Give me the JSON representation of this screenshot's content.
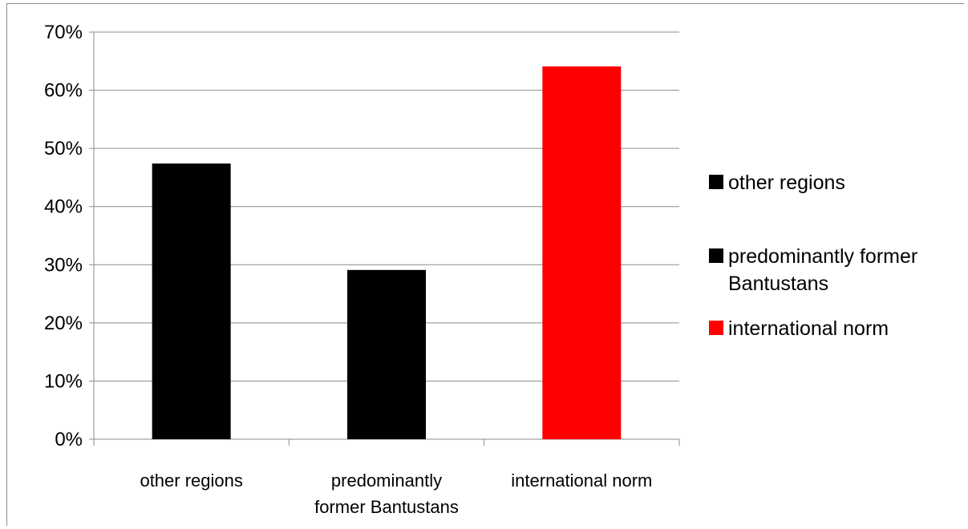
{
  "chart_data": {
    "type": "bar",
    "categories": [
      "other regions",
      "predominantly former Bantustans",
      "international norm"
    ],
    "category_label_lines": [
      [
        "other regions"
      ],
      [
        "predominantly",
        "former Bantustans"
      ],
      [
        "international norm"
      ]
    ],
    "values": [
      47.4,
      29.1,
      64.1
    ],
    "value_unit": "%",
    "colors": [
      "#000000",
      "#000000",
      "#ff0000"
    ],
    "ylim": [
      0,
      70
    ],
    "yticks": [
      0,
      10,
      20,
      30,
      40,
      50,
      60,
      70
    ],
    "ytick_labels": [
      "0%",
      "10%",
      "20%",
      "30%",
      "40%",
      "50%",
      "60%",
      "70%"
    ],
    "grid": true,
    "legend": {
      "position": "right",
      "entries": [
        {
          "lines": [
            "other regions"
          ],
          "color": "#000000"
        },
        {
          "lines": [
            "predominantly former",
            "Bantustans"
          ],
          "color": "#000000"
        },
        {
          "lines": [
            "international norm"
          ],
          "color": "#ff0000"
        }
      ]
    },
    "title": "",
    "xlabel": "",
    "ylabel": ""
  }
}
